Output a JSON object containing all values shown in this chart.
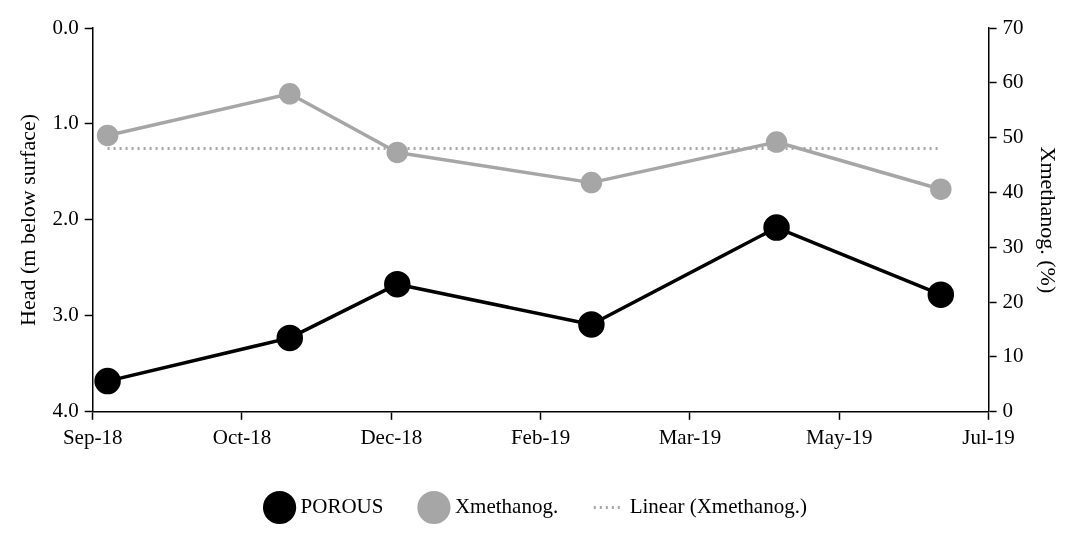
{
  "chart_data": {
    "type": "line",
    "xlabel": null,
    "ylabel": "Head (m below surface)",
    "y2label": "Xmethanog. (%)",
    "x": [
      "2018-09-15",
      "2018-11-15",
      "2018-12-21",
      "2019-02-24",
      "2019-04-27",
      "2019-06-21"
    ],
    "xlim": [
      "2018-09-10",
      "2019-07-07"
    ],
    "xticks": [
      {
        "value": "2018-09-10",
        "label": "Sep-18"
      },
      {
        "value": "2018-10-30",
        "label": "Oct-18"
      },
      {
        "value": "2018-12-19",
        "label": "Dec-18"
      },
      {
        "value": "2019-02-07",
        "label": "Feb-19"
      },
      {
        "value": "2019-03-29",
        "label": "Mar-19"
      },
      {
        "value": "2019-05-18",
        "label": "May-19"
      },
      {
        "value": "2019-07-07",
        "label": "Jul-19"
      }
    ],
    "ylim": [
      4.0,
      0.0
    ],
    "yticks": [
      {
        "value": 0,
        "label": "0.0"
      },
      {
        "value": 1,
        "label": "1.0"
      },
      {
        "value": 2,
        "label": "2.0"
      },
      {
        "value": 3,
        "label": "3.0"
      },
      {
        "value": 4,
        "label": "4.0"
      }
    ],
    "y2lim": [
      0,
      70
    ],
    "y2ticks": [
      0,
      10,
      20,
      30,
      40,
      50,
      60,
      70
    ],
    "series": [
      {
        "name": "POROUS",
        "color": "#000000",
        "marker": "circle",
        "line_style": "solid",
        "values": [
          3.68,
          3.23,
          2.67,
          3.09,
          2.08,
          2.78
        ]
      },
      {
        "name": "Xmethanog.",
        "color": "#a6a6a6",
        "marker": "circle",
        "line_style": "solid",
        "axis": "y2",
        "values": [
          50.4,
          58.0,
          47.3,
          41.8,
          49.2,
          40.6
        ]
      },
      {
        "name": "Linear (Xmethanog.)",
        "color": "#a6a6a6",
        "marker": "none",
        "line_style": "dotted",
        "axis": "y2",
        "x": [
          "2018-09-15",
          "2019-06-21"
        ],
        "values": [
          48.0,
          48.0
        ]
      }
    ],
    "grid": false,
    "legend": "bottom"
  }
}
